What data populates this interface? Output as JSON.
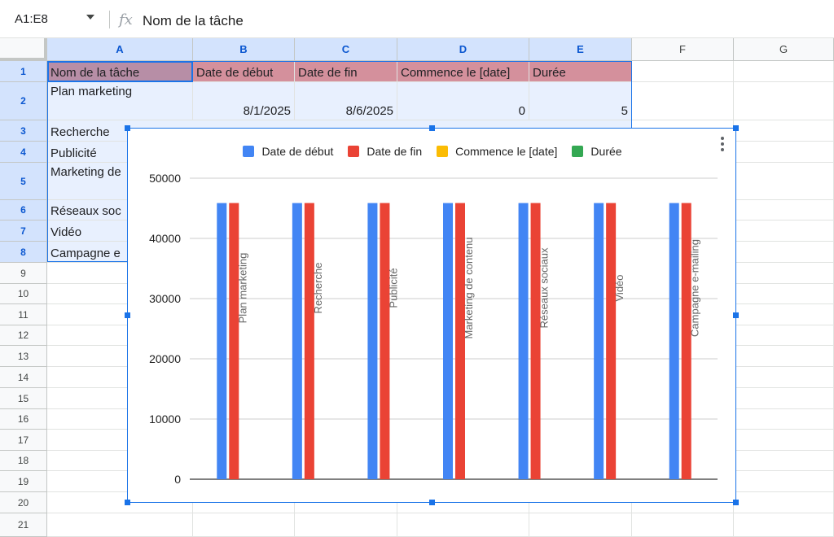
{
  "formula_bar": {
    "name_box": "A1:E8",
    "fx_label": "fx",
    "content": "Nom de la tâche"
  },
  "columns": [
    "A",
    "B",
    "C",
    "D",
    "E",
    "F",
    "G"
  ],
  "rows": [
    "1",
    "2",
    "3",
    "4",
    "5",
    "6",
    "7",
    "8",
    "9",
    "10",
    "11",
    "12",
    "13",
    "14",
    "15",
    "16",
    "17",
    "18",
    "19",
    "20",
    "21"
  ],
  "sheet": {
    "headers": [
      "Nom de la tâche",
      "Date de début",
      "Date de fin",
      "Commence le [date]",
      "Durée"
    ],
    "row2": {
      "task": "Plan marketing",
      "start": "8/1/2025",
      "end": "8/6/2025",
      "offset": "0",
      "duration": "5"
    },
    "visible_tasks": [
      "Recherche",
      "Publicité",
      "Marketing de",
      "Réseaux soc",
      "Vidéo",
      "Campagne e"
    ]
  },
  "chart_data": {
    "type": "bar",
    "categories": [
      "Plan marketing",
      "Recherche",
      "Publicité",
      "Marketing de contenu",
      "Réseaux sociaux",
      "Vidéo",
      "Campagne e-mailing"
    ],
    "series": [
      {
        "name": "Date de début",
        "color": "#4285f4",
        "values": [
          45870,
          45870,
          45870,
          45870,
          45870,
          45870,
          45870
        ]
      },
      {
        "name": "Date de fin",
        "color": "#ea4335",
        "values": [
          45875,
          45875,
          45875,
          45875,
          45875,
          45875,
          45875
        ]
      },
      {
        "name": "Commence le [date]",
        "color": "#fbbc04",
        "values": [
          0,
          0,
          0,
          0,
          0,
          0,
          0
        ]
      },
      {
        "name": "Durée",
        "color": "#34a853",
        "values": [
          5,
          5,
          5,
          5,
          5,
          5,
          5
        ]
      }
    ],
    "y_ticks": [
      "0",
      "10000",
      "20000",
      "30000",
      "40000",
      "50000"
    ],
    "ylim": [
      0,
      50000
    ],
    "grid": true,
    "legend": "top",
    "category_labels_rotated": true
  }
}
